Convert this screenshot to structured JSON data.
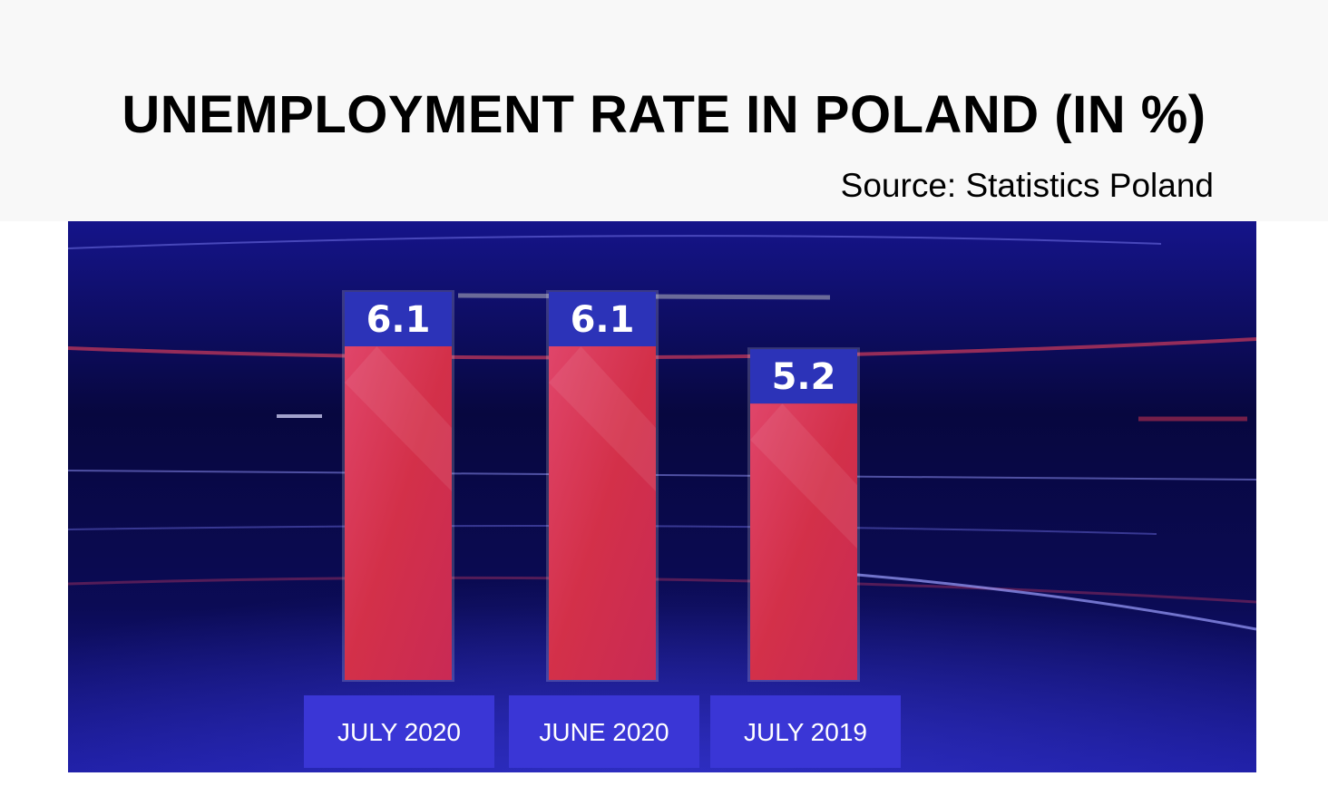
{
  "header": {
    "title": "UNEMPLOYMENT RATE IN POLAND (IN %)",
    "source": "Source: Statistics Poland"
  },
  "colors": {
    "background": "#0a0b5c",
    "bar": "#d8334e",
    "value_box": "#2c33b8",
    "label_box": "#3a36d6"
  },
  "chart_data": {
    "type": "bar",
    "title": "UNEMPLOYMENT RATE IN POLAND (IN %)",
    "subtitle": "Source: Statistics Poland",
    "categories": [
      "JULY 2020",
      "JUNE 2020",
      "JULY 2019"
    ],
    "values": [
      6.1,
      6.1,
      5.2
    ],
    "value_labels": [
      "6.1",
      "6.1",
      "5.2"
    ],
    "xlabel": "",
    "ylabel": "",
    "grid": false,
    "legend": "none"
  }
}
